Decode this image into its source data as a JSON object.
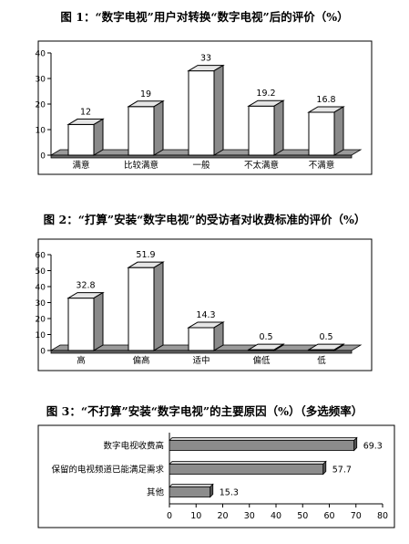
{
  "chart_data": [
    {
      "type": "bar",
      "title": "图 1：“数字电视”用户对转换“数字电视”后的评价（%）",
      "categories": [
        "满意",
        "比较满意",
        "一般",
        "不太满意",
        "不满意"
      ],
      "values": [
        12,
        19,
        33,
        19.2,
        16.8
      ],
      "value_labels": [
        "12",
        "19",
        "33",
        "19.2",
        "16.8"
      ],
      "yticks": [
        "0",
        "10",
        "20",
        "30",
        "40"
      ],
      "ylim": [
        0,
        40
      ],
      "grid": false,
      "legend": "none"
    },
    {
      "type": "bar",
      "title": "图 2：“打算”安装“数字电视”的受访者对收费标准的评价（%）",
      "categories": [
        "高",
        "偏高",
        "适中",
        "偏低",
        "低"
      ],
      "values": [
        32.8,
        51.9,
        14.3,
        0.5,
        0.5
      ],
      "value_labels": [
        "32.8",
        "51.9",
        "14.3",
        "0.5",
        "0.5"
      ],
      "yticks": [
        "0",
        "10",
        "20",
        "30",
        "40",
        "50",
        "60"
      ],
      "ylim": [
        0,
        60
      ],
      "grid": false,
      "legend": "none"
    },
    {
      "type": "bar",
      "orientation": "horizontal",
      "title": "图 3：“不打算”安装“数字电视”的主要原因（%）（多选频率）",
      "categories": [
        "数字电视收费高",
        "保留的电视频道已能满足需求",
        "其他"
      ],
      "values": [
        69.3,
        57.7,
        15.3
      ],
      "value_labels": [
        "69.3",
        "57.7",
        "15.3"
      ],
      "xticks": [
        "0",
        "10",
        "20",
        "30",
        "40",
        "50",
        "60",
        "70",
        "80"
      ],
      "xlim": [
        0,
        80
      ],
      "grid": false,
      "legend": "none",
      "bar_color": "#8c8c8c"
    }
  ]
}
